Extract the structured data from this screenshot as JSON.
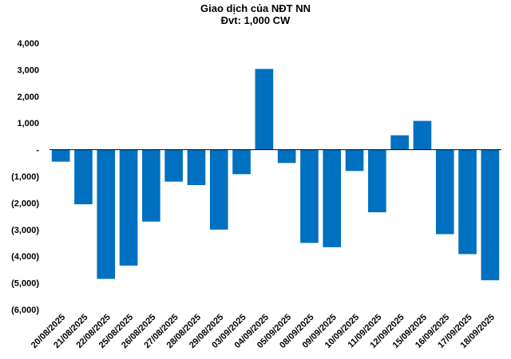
{
  "chart_data": {
    "type": "bar",
    "title": "Giao dịch của NĐT NN",
    "subtitle": "Đvt: 1,000 CW",
    "xlabel": "",
    "ylabel": "",
    "ylim": [
      -6000,
      4000
    ],
    "yticks": [
      4000,
      3000,
      2000,
      1000,
      0,
      -1000,
      -2000,
      -3000,
      -4000,
      -5000,
      -6000
    ],
    "ytick_labels": [
      "4,000",
      "3,000",
      "2,000",
      "1,000",
      "-",
      "(1,000)",
      "(2,000)",
      "(3,000)",
      "(4,000)",
      "(5,000)",
      "(6,000)"
    ],
    "grid": false,
    "legend": "none",
    "bar_color": "#0070C0",
    "categories": [
      "20/08/2025",
      "21/08/2025",
      "22/08/2025",
      "25/08/2025",
      "26/08/2025",
      "27/08/2025",
      "28/08/2025",
      "29/08/2025",
      "03/09/2025",
      "04/09/2025",
      "05/09/2025",
      "08/09/2025",
      "09/09/2025",
      "10/09/2025",
      "11/09/2025",
      "12/09/2025",
      "15/09/2025",
      "16/09/2025",
      "17/09/2025",
      "18/09/2025"
    ],
    "values": [
      -450,
      -2050,
      -4850,
      -4350,
      -2700,
      -1200,
      -1330,
      -3000,
      -920,
      3030,
      -500,
      -3500,
      -3660,
      -800,
      -2350,
      540,
      1080,
      -3170,
      -3920,
      -4900
    ]
  }
}
